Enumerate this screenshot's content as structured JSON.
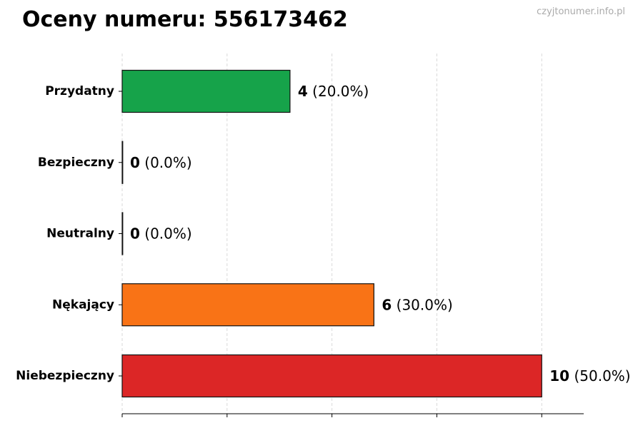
{
  "title": "Oceny numeru: 556173462",
  "watermark": "czyjtonumer.info.pl",
  "chart_data": {
    "type": "bar",
    "orientation": "horizontal",
    "title": "Oceny numeru: 556173462",
    "xlabel": "",
    "ylabel": "",
    "categories": [
      "Przydatny",
      "Bezpieczny",
      "Neutralny",
      "Nękający",
      "Niebezpieczny"
    ],
    "values": [
      4,
      0,
      0,
      6,
      10
    ],
    "percent_labels": [
      "(20.0%)",
      "(0.0%)",
      "(0.0%)",
      "(30.0%)",
      "(50.0%)"
    ],
    "colors": [
      "#16a34a",
      "#16a34a",
      "#9ca3af",
      "#f97316",
      "#dc2626"
    ],
    "xlim": [
      0,
      11
    ],
    "grid": "vertical dashed",
    "legend": "none"
  }
}
